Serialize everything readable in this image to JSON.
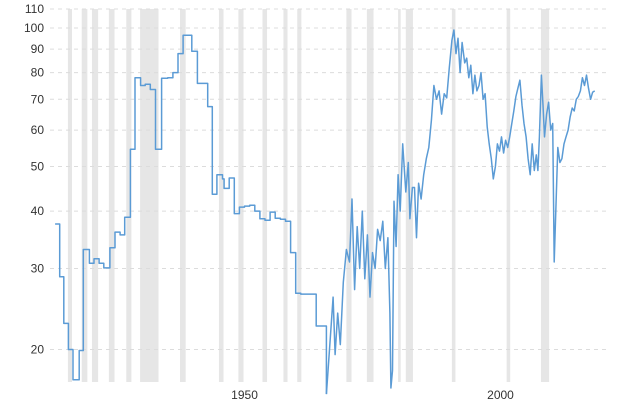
{
  "chart_data": {
    "type": "line",
    "title": "",
    "xlabel": "",
    "ylabel": "",
    "scale_y": "log",
    "ylim": [
      17,
      110
    ],
    "xlim": [
      1912,
      2021
    ],
    "y_ticks": [
      20,
      30,
      40,
      50,
      60,
      70,
      80,
      90,
      100,
      110
    ],
    "x_ticks": [
      1950,
      2000
    ],
    "grid": true,
    "colors": {
      "line": "#5b9bd5",
      "recession": "#e6e6e6",
      "grid": "#dcdcdc",
      "text": "#333333"
    },
    "recessions": [
      [
        1915.5,
        1916.3
      ],
      [
        1918.2,
        1919.3
      ],
      [
        1920.2,
        1921.4
      ],
      [
        1923.5,
        1924.6
      ],
      [
        1926.9,
        1927.9
      ],
      [
        1929.6,
        1933.2
      ],
      [
        1937.4,
        1938.5
      ],
      [
        1945.0,
        1945.9
      ],
      [
        1948.8,
        1949.8
      ],
      [
        1953.5,
        1954.4
      ],
      [
        1957.6,
        1958.4
      ],
      [
        1960.3,
        1961.1
      ],
      [
        1969.9,
        1970.9
      ],
      [
        1973.9,
        1975.2
      ],
      [
        1980.0,
        1980.5
      ],
      [
        1981.5,
        1982.9
      ],
      [
        1990.5,
        1991.2
      ],
      [
        2001.2,
        2001.9
      ],
      [
        2007.9,
        2009.5
      ]
    ],
    "series": [
      {
        "type": "step",
        "points": [
          [
            1913.0,
            37.5
          ],
          [
            1913.9,
            28.8
          ],
          [
            1914.7,
            22.8
          ],
          [
            1915.6,
            20.0
          ],
          [
            1916.5,
            17.2
          ],
          [
            1917.7,
            19.9
          ],
          [
            1918.5,
            33.0
          ],
          [
            1919.7,
            30.8
          ],
          [
            1920.6,
            31.5
          ],
          [
            1921.6,
            30.8
          ],
          [
            1922.5,
            30.1
          ],
          [
            1923.7,
            33.3
          ],
          [
            1924.7,
            36.0
          ],
          [
            1925.7,
            35.5
          ],
          [
            1926.6,
            38.8
          ],
          [
            1927.7,
            54.5
          ],
          [
            1928.6,
            78.0
          ],
          [
            1929.7,
            75.0
          ],
          [
            1930.6,
            75.5
          ],
          [
            1931.6,
            73.5
          ],
          [
            1932.6,
            54.5
          ],
          [
            1933.8,
            77.8
          ],
          [
            1935.0,
            78.0
          ],
          [
            1936.0,
            80.0
          ],
          [
            1937.0,
            88.0
          ],
          [
            1938.0,
            96.5
          ],
          [
            1939.7,
            89.0
          ],
          [
            1940.8,
            75.8
          ],
          [
            1942.8,
            67.5
          ],
          [
            1943.7,
            43.5
          ],
          [
            1944.6,
            48.0
          ],
          [
            1945.7,
            47.0
          ],
          [
            1946.0,
            44.8
          ],
          [
            1947.0,
            47.2
          ],
          [
            1948.0,
            39.5
          ],
          [
            1949.0,
            40.8
          ],
          [
            1950.0,
            41.0
          ],
          [
            1951.0,
            41.2
          ],
          [
            1952.0,
            40.0
          ],
          [
            1953.0,
            38.5
          ],
          [
            1954.0,
            38.2
          ],
          [
            1955.0,
            39.8
          ],
          [
            1956.0,
            38.6
          ],
          [
            1957.0,
            38.4
          ],
          [
            1958.0,
            38.0
          ],
          [
            1959.0,
            32.5
          ],
          [
            1960.0,
            26.5
          ],
          [
            1961.0,
            26.4
          ],
          [
            1962.5,
            26.4
          ],
          [
            1964.0,
            22.5
          ],
          [
            1965.0,
            22.5
          ],
          [
            1966.0,
            16.0
          ]
        ]
      },
      {
        "type": "line",
        "points": [
          [
            1966.0,
            16.0
          ],
          [
            1966.8,
            21.5
          ],
          [
            1967.3,
            26.0
          ],
          [
            1967.7,
            19.5
          ],
          [
            1968.2,
            24.0
          ],
          [
            1968.7,
            20.5
          ],
          [
            1969.3,
            28.0
          ],
          [
            1969.9,
            33.0
          ],
          [
            1970.5,
            31.0
          ],
          [
            1971.0,
            42.5
          ],
          [
            1971.5,
            27.0
          ],
          [
            1972.0,
            37.0
          ],
          [
            1972.5,
            30.0
          ],
          [
            1973.0,
            40.0
          ],
          [
            1973.5,
            28.5
          ],
          [
            1974.0,
            35.5
          ],
          [
            1974.5,
            26.0
          ],
          [
            1975.0,
            32.5
          ],
          [
            1975.5,
            30.0
          ],
          [
            1976.0,
            36.5
          ],
          [
            1976.5,
            34.5
          ],
          [
            1977.0,
            38.0
          ],
          [
            1977.5,
            30.0
          ],
          [
            1978.0,
            35.0
          ],
          [
            1978.4,
            24.0
          ],
          [
            1978.6,
            16.5
          ],
          [
            1978.9,
            18.0
          ],
          [
            1979.2,
            42.0
          ],
          [
            1979.6,
            33.5
          ],
          [
            1980.0,
            48.0
          ],
          [
            1980.4,
            40.0
          ],
          [
            1980.9,
            56.0
          ],
          [
            1981.5,
            44.0
          ],
          [
            1982.0,
            51.0
          ],
          [
            1982.3,
            38.5
          ],
          [
            1982.8,
            45.0
          ],
          [
            1983.2,
            45.0
          ],
          [
            1983.6,
            35.0
          ],
          [
            1984.0,
            46.0
          ],
          [
            1984.5,
            42.5
          ],
          [
            1985.0,
            48.0
          ],
          [
            1985.5,
            52.0
          ],
          [
            1986.0,
            55.0
          ],
          [
            1986.5,
            63.0
          ],
          [
            1987.0,
            75.0
          ],
          [
            1987.5,
            70.0
          ],
          [
            1988.0,
            73.0
          ],
          [
            1988.5,
            65.0
          ],
          [
            1989.0,
            72.0
          ],
          [
            1989.5,
            70.5
          ],
          [
            1990.0,
            82.0
          ],
          [
            1990.5,
            94.0
          ],
          [
            1990.9,
            99.0
          ],
          [
            1991.3,
            88.0
          ],
          [
            1991.7,
            95.0
          ],
          [
            1992.1,
            80.0
          ],
          [
            1992.5,
            93.0
          ],
          [
            1993.0,
            84.0
          ],
          [
            1993.4,
            86.0
          ],
          [
            1993.8,
            78.0
          ],
          [
            1994.2,
            83.0
          ],
          [
            1994.6,
            72.0
          ],
          [
            1995.0,
            79.0
          ],
          [
            1995.4,
            73.0
          ],
          [
            1995.8,
            75.0
          ],
          [
            1996.2,
            80.0
          ],
          [
            1996.6,
            70.0
          ],
          [
            1997.0,
            72.0
          ],
          [
            1997.4,
            61.0
          ],
          [
            1997.8,
            56.0
          ],
          [
            1998.2,
            52.0
          ],
          [
            1998.6,
            47.0
          ],
          [
            1999.0,
            50.0
          ],
          [
            1999.4,
            56.0
          ],
          [
            1999.8,
            54.0
          ],
          [
            2000.2,
            58.0
          ],
          [
            2000.6,
            53.5
          ],
          [
            2001.0,
            57.0
          ],
          [
            2001.4,
            55.0
          ],
          [
            2001.8,
            58.0
          ],
          [
            2002.2,
            62.0
          ],
          [
            2002.6,
            66.0
          ],
          [
            2003.0,
            71.0
          ],
          [
            2003.4,
            74.0
          ],
          [
            2003.8,
            77.0
          ],
          [
            2004.2,
            68.0
          ],
          [
            2004.6,
            62.0
          ],
          [
            2005.0,
            58.0
          ],
          [
            2005.4,
            52.0
          ],
          [
            2005.8,
            48.0
          ],
          [
            2006.2,
            56.0
          ],
          [
            2006.6,
            49.0
          ],
          [
            2007.0,
            53.0
          ],
          [
            2007.3,
            49.0
          ],
          [
            2007.6,
            58.0
          ],
          [
            2008.0,
            79.0
          ],
          [
            2008.3,
            68.0
          ],
          [
            2008.6,
            58.0
          ],
          [
            2009.0,
            65.0
          ],
          [
            2009.4,
            69.0
          ],
          [
            2009.8,
            60.0
          ],
          [
            2010.2,
            62.0
          ],
          [
            2010.5,
            31.0
          ],
          [
            2010.8,
            40.0
          ],
          [
            2011.2,
            55.0
          ],
          [
            2011.6,
            51.0
          ],
          [
            2012.0,
            52.0
          ],
          [
            2012.4,
            56.0
          ],
          [
            2012.8,
            58.0
          ],
          [
            2013.2,
            60.0
          ],
          [
            2013.6,
            64.0
          ],
          [
            2014.0,
            67.0
          ],
          [
            2014.4,
            66.0
          ],
          [
            2014.8,
            70.0
          ],
          [
            2015.2,
            71.0
          ],
          [
            2015.6,
            73.0
          ],
          [
            2016.0,
            78.0
          ],
          [
            2016.4,
            75.0
          ],
          [
            2016.8,
            79.0
          ],
          [
            2017.2,
            74.0
          ],
          [
            2017.6,
            70.0
          ],
          [
            2018.0,
            72.5
          ],
          [
            2018.4,
            73.0
          ]
        ]
      }
    ]
  }
}
